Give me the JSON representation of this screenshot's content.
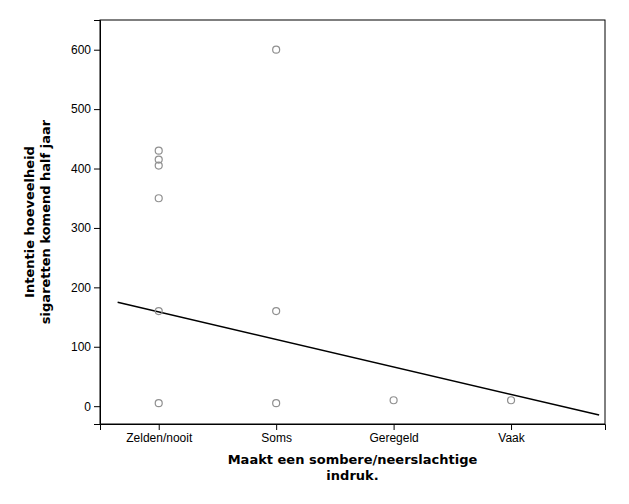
{
  "chart_data": {
    "type": "scatter",
    "xlabel": "Maakt een sombere/neerslachtige\nindruk.",
    "ylabel": "Intentie hoeveelheid\nsigaretten komend half jaar",
    "xlim": [
      0.5,
      4.8
    ],
    "ylim": [
      -30,
      650
    ],
    "yticks": [
      0,
      100,
      200,
      300,
      400,
      500,
      600
    ],
    "xticks": [
      {
        "value": 1,
        "label": "Zelden/nooit"
      },
      {
        "value": 2,
        "label": "Soms"
      },
      {
        "value": 3,
        "label": "Geregeld"
      },
      {
        "value": 4,
        "label": "Vaak"
      }
    ],
    "grid": false,
    "series": [
      {
        "type": "scatter",
        "marker": "circle",
        "color": "#909090",
        "x": [
          1,
          1,
          1,
          1,
          1,
          1,
          2,
          2,
          2,
          3,
          4
        ],
        "values": [
          160,
          5,
          350,
          405,
          415,
          430,
          600,
          160,
          5,
          10,
          10
        ]
      },
      {
        "type": "line",
        "line_style": "solid",
        "color": "#000000",
        "x": [
          0.65,
          4.75
        ],
        "values": [
          175,
          -15
        ]
      }
    ]
  }
}
